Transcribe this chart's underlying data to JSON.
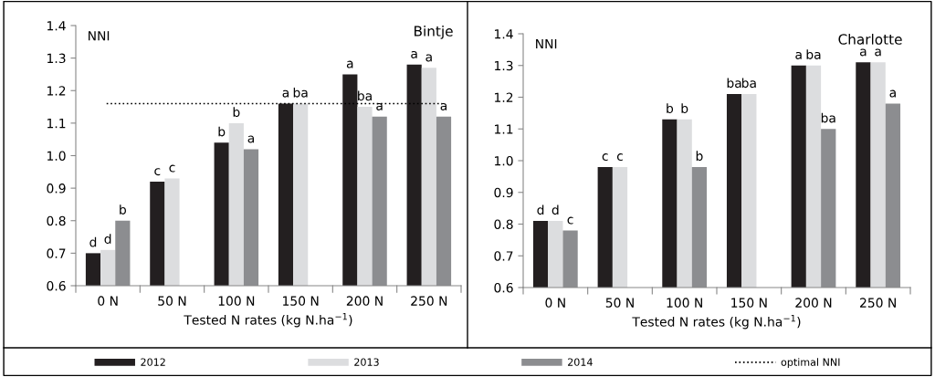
{
  "chart_data": [
    {
      "type": "bar",
      "title": "Bintje",
      "ylabel": "NNI",
      "xlabel": "Tested N rates (kg N.ha$^{−1}$)",
      "categories": [
        "0 N",
        "50 N",
        "100 N",
        "150 N",
        "200 N",
        "250 N"
      ],
      "series": [
        {
          "name": "2012",
          "color": "#231f20",
          "values": [
            0.7,
            0.92,
            1.04,
            1.16,
            1.25,
            1.28
          ],
          "value_labels": [
            "d",
            "c",
            "b",
            "a",
            "a",
            "a"
          ]
        },
        {
          "name": "2013",
          "color": "#dcdddf",
          "values": [
            0.71,
            0.93,
            1.1,
            1.16,
            1.15,
            1.27
          ],
          "value_labels": [
            "d",
            "c",
            "b",
            "ba",
            "ba",
            "a"
          ]
        },
        {
          "name": "2014",
          "color": "#8c8d90",
          "values": [
            0.8,
            null,
            1.02,
            null,
            1.12,
            1.12
          ],
          "value_labels": [
            "b",
            null,
            "a",
            null,
            "a",
            "a"
          ]
        }
      ],
      "ylim": [
        0.6,
        1.4
      ],
      "yticks": [
        {
          "value": 0.6,
          "label": "0.6"
        },
        {
          "value": 0.7,
          "label": "0.7"
        },
        {
          "value": 0.8,
          "label": "0.8"
        },
        {
          "value": 0.9,
          "label": "0.9"
        },
        {
          "value": 1.0,
          "label": "1.0"
        },
        {
          "value": 1.1,
          "label": "1.1"
        },
        {
          "value": 1.2,
          "label": "1.2"
        },
        {
          "value": 1.3,
          "label": "1.3"
        },
        {
          "value": 1.4,
          "label": "1.4"
        }
      ],
      "ref_lines": [
        {
          "axis": "y",
          "value": 1.16,
          "label": "optimal NNI",
          "color": "#000000",
          "line_style": "dotted"
        }
      ],
      "legend": "bottom",
      "grid": false
    },
    {
      "type": "bar",
      "title": "Charlotte",
      "ylabel": "NNI",
      "xlabel": "Tested N rates (kg N.ha$^{−1}$)",
      "categories": [
        "0 N",
        "50 N",
        "100 N",
        "150 N",
        "200 N",
        "250 N"
      ],
      "series": [
        {
          "color": "#231f20",
          "values": [
            0.81,
            0.98,
            1.13,
            1.21,
            1.3,
            1.31
          ],
          "value_labels": [
            "d",
            "c",
            "b",
            "ba",
            "a",
            "a"
          ]
        },
        {
          "color": "#dcdddf",
          "values": [
            0.81,
            0.98,
            1.13,
            1.21,
            1.3,
            1.31
          ],
          "value_labels": [
            "d",
            "c",
            "b",
            "ba",
            "ba",
            "a"
          ]
        },
        {
          "color": "#8c8d90",
          "values": [
            0.78,
            null,
            0.98,
            null,
            1.1,
            1.18
          ],
          "value_labels": [
            "c",
            null,
            "b",
            null,
            "ba",
            "a"
          ]
        }
      ],
      "ylim": [
        0.6,
        1.4
      ],
      "yticks": [
        {
          "value": 0.6,
          "label": "0.6"
        },
        {
          "value": 0.7,
          "label": "0.7"
        },
        {
          "value": 0.8,
          "label": "0.8"
        },
        {
          "value": 0.9,
          "label": "0.9"
        },
        {
          "value": 1.0,
          "label": "1.0"
        },
        {
          "value": 1.1,
          "label": "1.1"
        },
        {
          "value": 1.2,
          "label": "1.2"
        },
        {
          "value": 1.3,
          "label": "1.3"
        },
        {
          "value": 1.4,
          "label": "1.4"
        }
      ],
      "grid": false
    }
  ]
}
